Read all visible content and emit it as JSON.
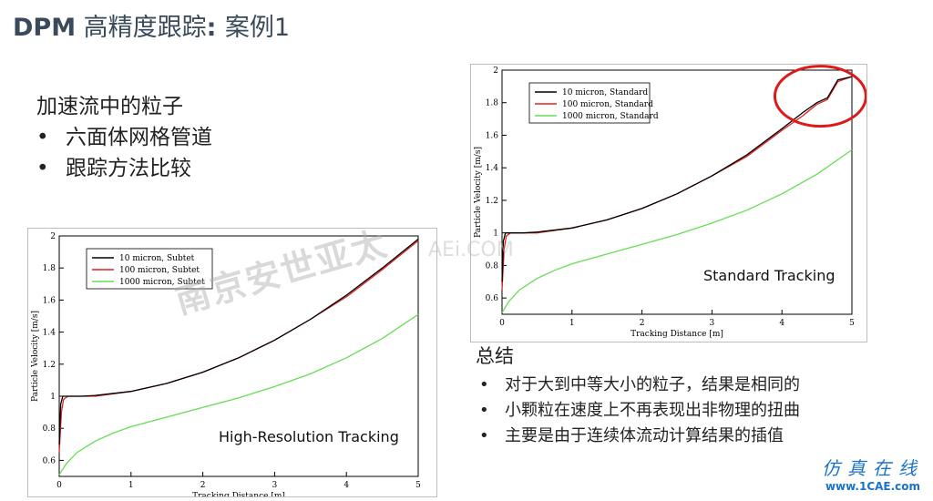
{
  "slide": {
    "title_bold1": "DPM",
    "title_main": " 高精度跟踪",
    "title_bold2": ": ",
    "title_rest": "案例1",
    "intro_heading": "加速流中的粒子",
    "intro_bullets": [
      "六面体网格管道",
      "跟踪方法比较"
    ],
    "summary_heading": "总结",
    "summary_bullets": [
      "对于大到中等大小的粒子，结果是相同的",
      "小颗粒在速度上不再表现出非物理的扭曲",
      "主要是由于连续体流动计算结果的插值"
    ],
    "bullet_char": "•"
  },
  "watermark": {
    "text1": "南京安世亚太",
    "text2": "AEi.COM"
  },
  "logo": {
    "text": "仿真在线",
    "url": "www.1CAE.com"
  },
  "chart_data": [
    {
      "type": "line",
      "label": "High-Resolution Tracking",
      "xlabel": "Tracking Distance [m]",
      "ylabel": "Particle Velocity [m/s]",
      "xlim": [
        0,
        5
      ],
      "ylim": [
        0.5,
        2
      ],
      "xticks": [
        0,
        1,
        2,
        3,
        4,
        5
      ],
      "yticks": [
        0.6,
        0.8,
        1,
        1.2,
        1.4,
        1.6,
        1.8,
        2
      ],
      "legend_position": "top-left",
      "series": [
        {
          "name": "10 micron, Subtet",
          "color": "#000000",
          "x": [
            0.0,
            0.02,
            0.05,
            0.1,
            0.3,
            0.5,
            1.0,
            1.5,
            2.0,
            2.5,
            3.0,
            3.5,
            4.0,
            4.5,
            5.0
          ],
          "y": [
            0.7,
            0.95,
            1.0,
            1.0,
            1.0,
            1.005,
            1.03,
            1.08,
            1.15,
            1.24,
            1.35,
            1.48,
            1.63,
            1.8,
            1.98
          ]
        },
        {
          "name": "100 micron, Subtet",
          "color": "#e02020",
          "x": [
            0.0,
            0.03,
            0.06,
            0.12,
            0.3,
            0.5,
            1.0,
            1.5,
            2.0,
            2.5,
            3.0,
            3.5,
            4.0,
            4.5,
            5.0
          ],
          "y": [
            0.65,
            0.9,
            0.98,
            1.0,
            1.0,
            1.0,
            1.03,
            1.08,
            1.15,
            1.24,
            1.35,
            1.48,
            1.62,
            1.79,
            1.97
          ]
        },
        {
          "name": "1000 micron, Subtet",
          "color": "#66dd55",
          "x": [
            0.0,
            0.1,
            0.25,
            0.5,
            0.75,
            1.0,
            1.5,
            2.0,
            2.5,
            3.0,
            3.5,
            4.0,
            4.5,
            5.0
          ],
          "y": [
            0.51,
            0.58,
            0.65,
            0.72,
            0.77,
            0.81,
            0.87,
            0.93,
            0.99,
            1.06,
            1.14,
            1.24,
            1.36,
            1.51
          ]
        }
      ]
    },
    {
      "type": "line",
      "label": "Standard Tracking",
      "xlabel": "Tracking Distance [m]",
      "ylabel": "Particle Velocity [m/s]",
      "xlim": [
        0,
        5
      ],
      "ylim": [
        0.5,
        2
      ],
      "xticks": [
        0,
        1,
        2,
        3,
        4,
        5
      ],
      "yticks": [
        0.6,
        0.8,
        1,
        1.2,
        1.4,
        1.6,
        1.8,
        2
      ],
      "legend_position": "top-left",
      "series": [
        {
          "name": "10 micron, Standard",
          "color": "#000000",
          "x": [
            0.0,
            0.02,
            0.05,
            0.1,
            0.3,
            0.5,
            1.0,
            1.5,
            2.0,
            2.5,
            3.0,
            3.5,
            4.0,
            4.3,
            4.5,
            4.65,
            4.8,
            5.0
          ],
          "y": [
            0.7,
            0.95,
            1.0,
            1.0,
            1.0,
            1.005,
            1.03,
            1.08,
            1.15,
            1.24,
            1.35,
            1.48,
            1.64,
            1.74,
            1.8,
            1.83,
            1.94,
            1.96
          ]
        },
        {
          "name": "100 micron, Standard",
          "color": "#e02020",
          "x": [
            0.0,
            0.03,
            0.06,
            0.12,
            0.3,
            0.5,
            1.0,
            1.5,
            2.0,
            2.5,
            3.0,
            3.5,
            4.0,
            4.3,
            4.5,
            4.65,
            4.8,
            5.0
          ],
          "y": [
            0.65,
            0.9,
            0.98,
            1.0,
            1.0,
            1.0,
            1.03,
            1.08,
            1.15,
            1.24,
            1.35,
            1.47,
            1.63,
            1.72,
            1.79,
            1.82,
            1.93,
            1.96
          ]
        },
        {
          "name": "1000 micron, Standard",
          "color": "#66dd55",
          "x": [
            0.0,
            0.1,
            0.25,
            0.5,
            0.75,
            1.0,
            1.5,
            2.0,
            2.5,
            3.0,
            3.5,
            4.0,
            4.5,
            5.0
          ],
          "y": [
            0.51,
            0.58,
            0.65,
            0.72,
            0.77,
            0.81,
            0.87,
            0.93,
            0.99,
            1.06,
            1.14,
            1.24,
            1.36,
            1.51
          ]
        }
      ],
      "annotation": {
        "shape": "ellipse",
        "color": "#dd1a1a",
        "x": 4.55,
        "y": 1.84
      }
    }
  ]
}
